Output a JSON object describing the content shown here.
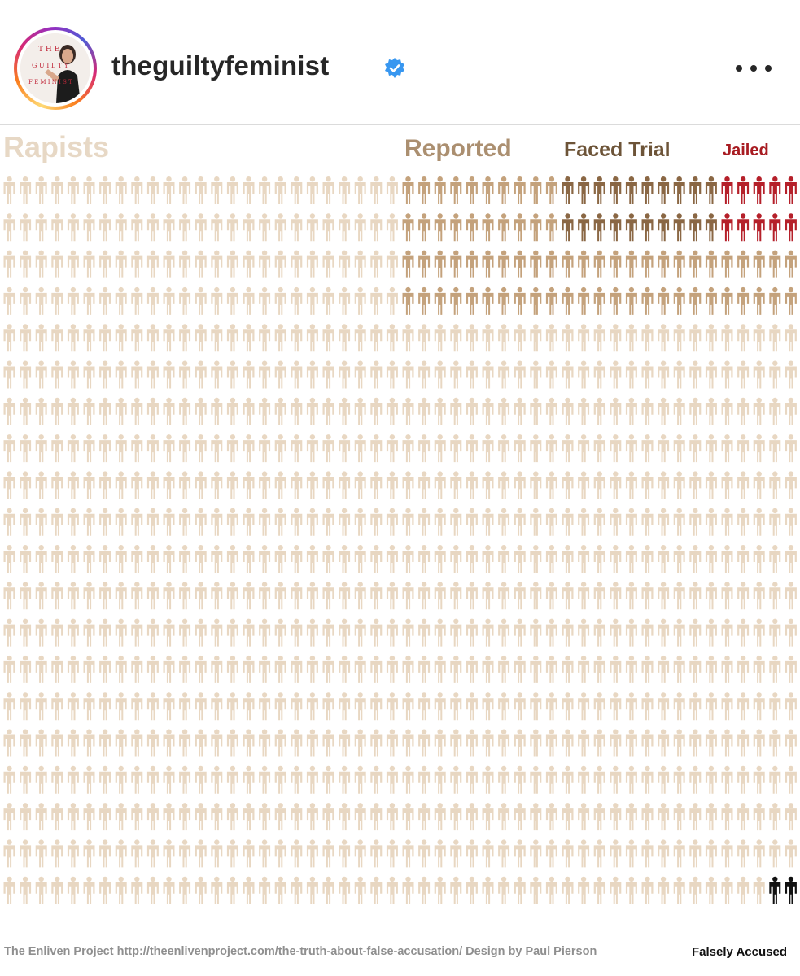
{
  "post": {
    "username": "theguiltyfeminist",
    "verified": true,
    "avatar_text": [
      "T H E",
      "G U I L T Y",
      "F E M I N I S T"
    ]
  },
  "colors": {
    "rapists": "#e8d7c2",
    "reported": "#c4a27c",
    "faced_trial": "#8a6744",
    "jailed": "#b5202a",
    "falsely_accused": "#111111",
    "verified_badge": "#3897f0"
  },
  "chart_data": {
    "type": "pictogram",
    "icon": "person-icon",
    "rows": 20,
    "columns": 50,
    "labels": {
      "rapists": "Rapists",
      "reported": "Reported",
      "faced_trial": "Faced Trial",
      "jailed": "Jailed",
      "falsely_accused": "Falsely Accused"
    },
    "categories": [
      "Rapists",
      "Reported",
      "Faced Trial",
      "Jailed",
      "Falsely Accused"
    ],
    "values": [
      1000,
      100,
      30,
      10,
      2
    ],
    "credit": "The Enliven Project http://theenlivenproject.com/the-truth-about-false-accusation/ Design by Paul Pierson"
  }
}
